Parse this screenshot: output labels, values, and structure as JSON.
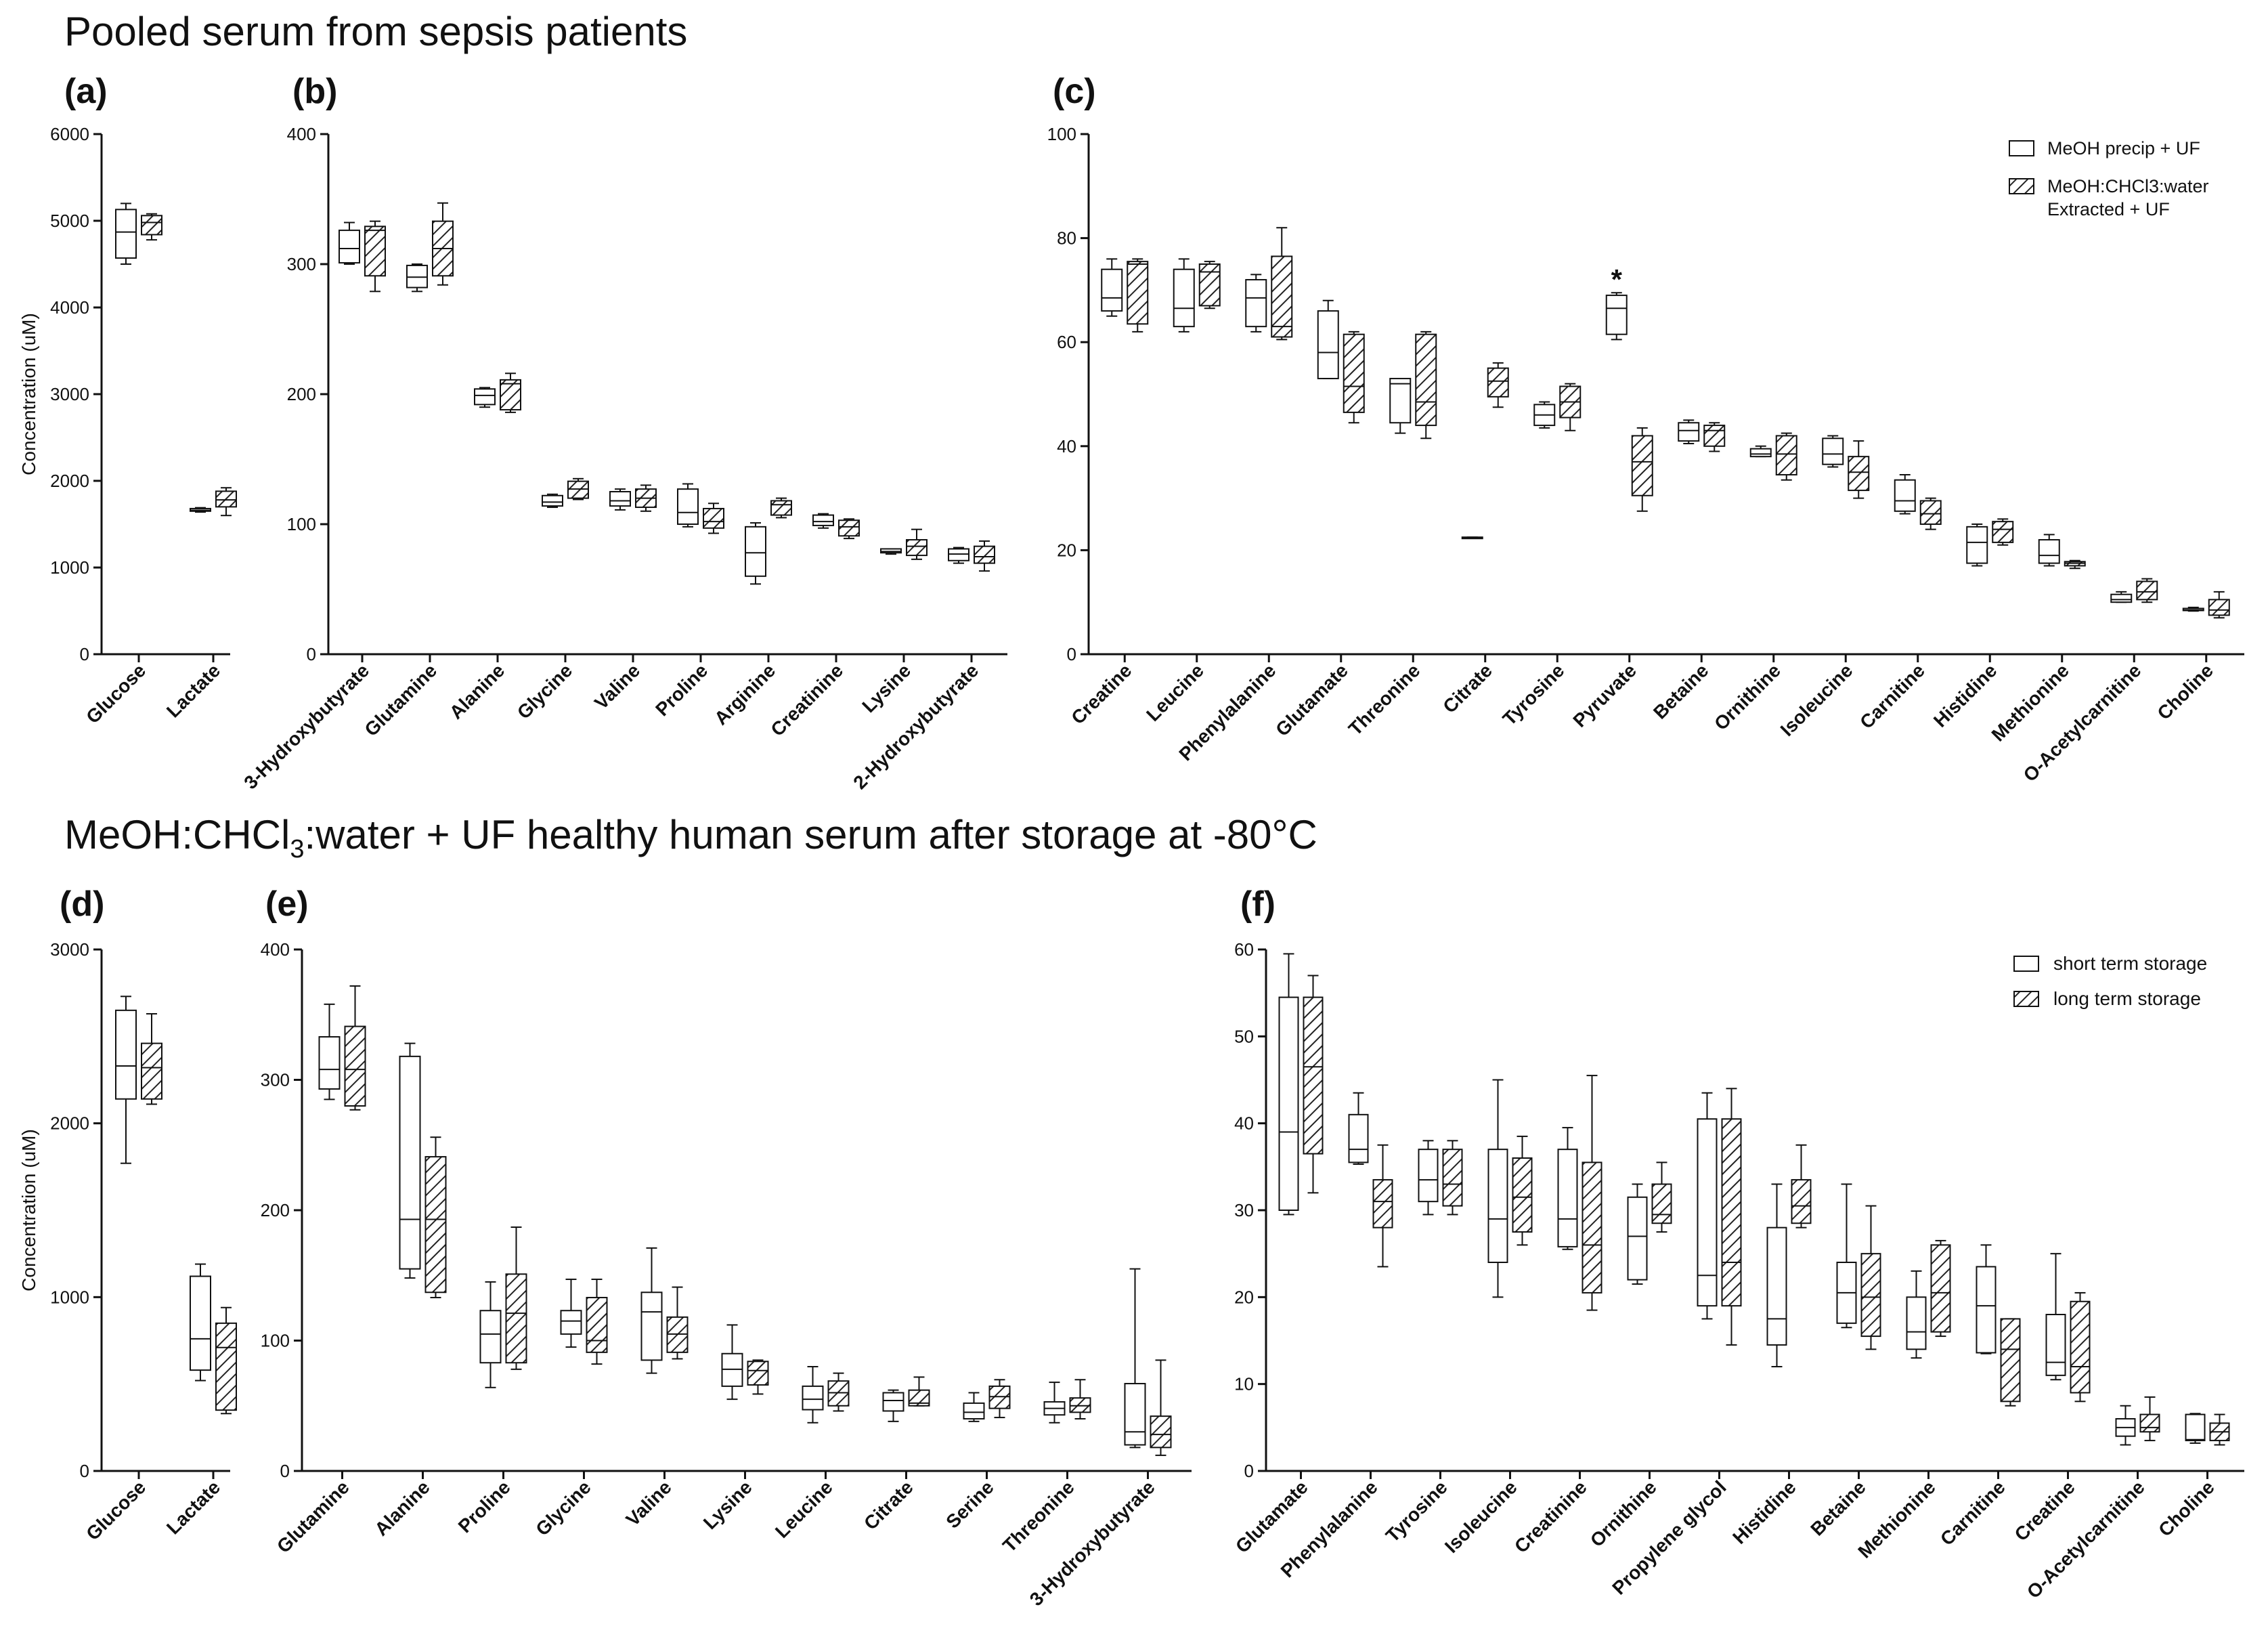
{
  "sections": [
    "Pooled serum from sepsis patients"
  ],
  "sections_storage": {
    "part1": "MeOH:CHCl",
    "sub": "3",
    "part2": ":water + UF healthy human serum after storage at -80°C"
  },
  "colors": {
    "axis": "#111111",
    "box_stroke": "#111111",
    "plain_fill": "#ffffff",
    "hatch_fill": "hatched"
  },
  "chart_data": [
    {
      "type": "box",
      "panel": "(a)",
      "ylabel": "Concentration (uM)",
      "ylim": [
        0,
        6000
      ],
      "yticks": [
        0,
        1000,
        2000,
        3000,
        4000,
        5000,
        6000
      ],
      "categories": [
        "Glucose",
        "Lactate"
      ],
      "series": [
        {
          "name": "MeOH precip + UF",
          "boxes": [
            [
              4500,
              4570,
              4870,
              5130,
              5200
            ],
            [
              1640,
              1650,
              1660,
              1680,
              1690
            ]
          ]
        },
        {
          "name": "MeOH:CHCl3:water Extracted + UF",
          "boxes": [
            [
              4780,
              4840,
              4980,
              5060,
              5080
            ],
            [
              1600,
              1700,
              1780,
              1880,
              1920
            ]
          ]
        }
      ]
    },
    {
      "type": "box",
      "panel": "(b)",
      "ylabel": "",
      "ylim": [
        0,
        400
      ],
      "yticks": [
        0,
        100,
        200,
        300,
        400
      ],
      "categories": [
        "3-Hydroxybutyrate",
        "Glutamine",
        "Alanine",
        "Glycine",
        "Valine",
        "Proline",
        "Arginine",
        "Creatinine",
        "Lysine",
        "2-Hydroxybutyrate"
      ],
      "series": [
        {
          "name": "MeOH precip + UF",
          "boxes": [
            [
              300,
              301,
              312,
              326,
              332
            ],
            [
              279,
              282,
              290,
              299,
              300
            ],
            [
              190,
              192,
              199,
              204,
              205
            ],
            [
              113,
              114,
              117,
              122,
              123
            ],
            [
              111,
              114,
              118,
              125,
              127
            ],
            [
              98,
              100,
              109,
              127,
              131
            ],
            [
              54,
              60,
              78,
              98,
              101
            ],
            [
              97,
              99,
              102,
              107,
              108
            ],
            [
              77,
              78,
              79,
              81,
              81
            ],
            [
              70,
              72,
              77,
              81,
              82
            ]
          ]
        },
        {
          "name": "MeOH:CHCl3:water Extracted + UF",
          "boxes": [
            [
              279,
              291,
              326,
              329,
              333
            ],
            [
              284,
              291,
              312,
              333,
              347
            ],
            [
              186,
              188,
              208,
              211,
              216
            ],
            [
              119,
              120,
              127,
              133,
              135
            ],
            [
              110,
              113,
              120,
              127,
              130
            ],
            [
              93,
              97,
              102,
              112,
              116
            ],
            [
              105,
              107,
              115,
              118,
              120
            ],
            [
              89,
              91,
              98,
              103,
              104
            ],
            [
              73,
              76,
              83,
              88,
              96
            ],
            [
              64,
              70,
              75,
              83,
              87
            ]
          ]
        }
      ]
    },
    {
      "type": "box",
      "panel": "(c)",
      "ylabel": "",
      "ylim": [
        0,
        100
      ],
      "yticks": [
        0,
        20,
        40,
        60,
        80,
        100
      ],
      "categories": [
        "Creatine",
        "Leucine",
        "Phenylalanine",
        "Glutamate",
        "Threonine",
        "Citrate",
        "Tyrosine",
        "Pyruvate",
        "Betaine",
        "Ornithine",
        "Isoleucine",
        "Carnitine",
        "Histidine",
        "Methionine",
        "O-Acetylcarnitine",
        "Choline"
      ],
      "legend": [
        "MeOH precip + UF",
        "MeOH:CHCl3:water",
        "Extracted + UF"
      ],
      "annotation": {
        "text": "*",
        "category": "Pyruvate",
        "y": 72
      },
      "series": [
        {
          "name": "MeOH precip + UF",
          "boxes": [
            [
              65,
              66,
              68.5,
              74,
              76
            ],
            [
              62,
              63,
              66.5,
              74,
              76
            ],
            [
              62,
              63,
              68.5,
              72,
              73
            ],
            [
              53,
              53,
              58,
              66,
              68
            ],
            [
              42.5,
              44.5,
              52,
              53,
              53
            ],
            [
              22.3,
              22.3,
              22.4,
              22.5,
              22.5
            ],
            [
              43.5,
              44,
              46,
              48,
              48.5
            ],
            [
              60.5,
              61.5,
              66.5,
              69,
              69.5
            ],
            [
              40.5,
              41,
              43,
              44.5,
              45
            ],
            [
              38,
              38,
              38.5,
              39.5,
              40
            ],
            [
              36,
              36.5,
              38.5,
              41.5,
              42
            ],
            [
              27,
              27.5,
              29.5,
              33.5,
              34.5
            ],
            [
              17,
              17.5,
              21.5,
              24.5,
              25
            ],
            [
              17,
              17.5,
              19,
              22,
              23
            ],
            [
              10,
              10,
              10.5,
              11.5,
              12
            ],
            [
              8.3,
              8.4,
              8.5,
              8.8,
              9
            ]
          ]
        },
        {
          "name": "MeOH:CHCl3:water Extracted + UF",
          "boxes": [
            [
              62,
              63.5,
              75,
              75.5,
              76
            ],
            [
              66.5,
              67,
              73.5,
              75,
              75.5
            ],
            [
              60.5,
              61,
              63,
              76.5,
              82
            ],
            [
              44.5,
              46.5,
              51.5,
              61.5,
              62
            ],
            [
              41.5,
              44,
              48.5,
              61.5,
              62
            ],
            [
              47.5,
              49.5,
              52.5,
              55,
              56
            ],
            [
              43,
              45.5,
              48.5,
              51.5,
              52
            ],
            [
              27.5,
              30.5,
              37,
              42,
              43.5
            ],
            [
              39,
              40,
              43,
              44,
              44.5
            ],
            [
              33.5,
              34.5,
              38.5,
              42,
              42.5
            ],
            [
              30,
              31.5,
              35,
              38,
              41
            ],
            [
              24,
              25,
              27,
              29.5,
              30
            ],
            [
              21,
              21.5,
              24,
              25.5,
              26
            ],
            [
              16.5,
              17,
              17.5,
              17.8,
              18
            ],
            [
              10,
              10.5,
              12,
              14,
              14.5
            ],
            [
              7,
              7.5,
              8.5,
              10.5,
              12
            ]
          ]
        }
      ]
    },
    {
      "type": "box",
      "panel": "(d)",
      "ylabel": "Concentration (uM)",
      "ylim": [
        0,
        3000
      ],
      "yticks": [
        0,
        1000,
        2000,
        3000
      ],
      "categories": [
        "Glucose",
        "Lactate"
      ],
      "series": [
        {
          "name": "short term storage",
          "boxes": [
            [
              1770,
              2140,
              2330,
              2650,
              2730
            ],
            [
              520,
              580,
              760,
              1120,
              1190
            ]
          ]
        },
        {
          "name": "long term storage",
          "boxes": [
            [
              2110,
              2140,
              2320,
              2460,
              2630
            ],
            [
              330,
              350,
              710,
              850,
              940
            ]
          ]
        }
      ]
    },
    {
      "type": "box",
      "panel": "(e)",
      "ylabel": "",
      "ylim": [
        0,
        400
      ],
      "yticks": [
        0,
        100,
        200,
        300,
        400
      ],
      "categories": [
        "Glutamine",
        "Alanine",
        "Proline",
        "Glycine",
        "Valine",
        "Lysine",
        "Leucine",
        "Citrate",
        "Serine",
        "Threonine",
        "3-Hydroxybutyrate"
      ],
      "series": [
        {
          "name": "short term storage",
          "boxes": [
            [
              285,
              293,
              308,
              333,
              358
            ],
            [
              148,
              155,
              193,
              318,
              328
            ],
            [
              64,
              83,
              105,
              123,
              145
            ],
            [
              95,
              105,
              115,
              123,
              147
            ],
            [
              75,
              85,
              122,
              137,
              171
            ],
            [
              55,
              65,
              78,
              90,
              112
            ],
            [
              37,
              47,
              55,
              65,
              80
            ],
            [
              38,
              46,
              54,
              60,
              62
            ],
            [
              38,
              40,
              45,
              52,
              60
            ],
            [
              37,
              43,
              48,
              53,
              68
            ],
            [
              18,
              20,
              30,
              67,
              155
            ]
          ]
        },
        {
          "name": "long term storage",
          "boxes": [
            [
              277,
              280,
              308,
              341,
              372
            ],
            [
              133,
              137,
              193,
              241,
              256
            ],
            [
              78,
              83,
              121,
              151,
              187
            ],
            [
              82,
              91,
              100,
              133,
              147
            ],
            [
              86,
              91,
              105,
              118,
              141
            ],
            [
              59,
              66,
              77,
              84,
              85
            ],
            [
              46,
              50,
              60,
              69,
              75
            ],
            [
              50,
              50,
              52,
              62,
              72
            ],
            [
              41,
              48,
              57,
              65,
              70
            ],
            [
              40,
              45,
              50,
              56,
              70
            ],
            [
              12,
              18,
              28,
              42,
              85
            ]
          ]
        }
      ]
    },
    {
      "type": "box",
      "panel": "(f)",
      "ylabel": "",
      "ylim": [
        0,
        60
      ],
      "yticks": [
        0,
        10,
        20,
        30,
        40,
        50,
        60
      ],
      "categories": [
        "Glutamate",
        "Phenylalanine",
        "Tyrosine",
        "Isoleucine",
        "Creatinine",
        "Ornithine",
        "Propylene glycol",
        "Histidine",
        "Betaine",
        "Methionine",
        "Carnitine",
        "Creatine",
        "O-Acetylcarnitine",
        "Choline"
      ],
      "legend": [
        "short term storage",
        "long term storage"
      ],
      "series": [
        {
          "name": "short term storage",
          "boxes": [
            [
              29.5,
              30,
              39,
              54.5,
              59.5
            ],
            [
              35.3,
              35.5,
              37,
              41,
              43.5
            ],
            [
              29.5,
              31,
              33.5,
              37,
              38
            ],
            [
              20,
              24,
              29,
              37,
              45
            ],
            [
              25.5,
              25.8,
              29,
              37,
              39.5
            ],
            [
              21.5,
              22,
              27,
              31.5,
              33
            ],
            [
              17.5,
              19,
              22.5,
              40.5,
              43.5
            ],
            [
              12,
              14.5,
              17.5,
              28,
              33
            ],
            [
              16.5,
              17,
              20.5,
              24,
              33
            ],
            [
              13,
              14,
              16,
              20,
              23
            ],
            [
              13.5,
              13.6,
              19,
              23.5,
              26
            ],
            [
              10.5,
              11,
              12.5,
              18,
              25
            ],
            [
              3,
              4,
              5,
              6,
              7.5
            ],
            [
              3.2,
              3.5,
              3.6,
              6.5,
              6.6
            ]
          ]
        },
        {
          "name": "long term storage",
          "boxes": [
            [
              32,
              36.5,
              46.5,
              54.5,
              57
            ],
            [
              23.5,
              28,
              31,
              33.5,
              37.5
            ],
            [
              29.5,
              30.5,
              33,
              37,
              38
            ],
            [
              26,
              27.5,
              31.5,
              36,
              38.5
            ],
            [
              18.5,
              20.5,
              26,
              35.5,
              45.5
            ],
            [
              27.5,
              28.5,
              29.5,
              33,
              35.5
            ],
            [
              14.5,
              19,
              24,
              40.5,
              44
            ],
            [
              28,
              28.5,
              30.5,
              33.5,
              37.5
            ],
            [
              14,
              15.5,
              20,
              25,
              30.5
            ],
            [
              15.5,
              16,
              20.5,
              26,
              26.5
            ],
            [
              7.5,
              8,
              14,
              17.5,
              17.5
            ],
            [
              8,
              9,
              12,
              19.5,
              20.5
            ],
            [
              3.5,
              4.5,
              5,
              6.5,
              8.5
            ],
            [
              3,
              3.5,
              4.5,
              5.5,
              6.5
            ]
          ]
        }
      ]
    }
  ]
}
